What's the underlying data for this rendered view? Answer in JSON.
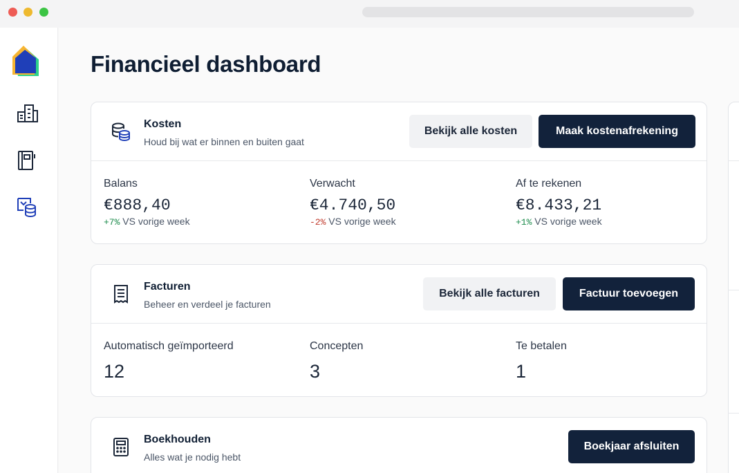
{
  "page": {
    "title": "Financieel dashboard"
  },
  "sidebar": {
    "items": [
      {
        "icon": "buildings-icon"
      },
      {
        "icon": "notebook-icon"
      },
      {
        "icon": "finance-icon"
      }
    ]
  },
  "kosten": {
    "title": "Kosten",
    "subtitle": "Houd bij wat er binnen en buiten gaat",
    "btn_secondary": "Bekijk alle kosten",
    "btn_primary": "Maak kostenafrekening",
    "stats": [
      {
        "label": "Balans",
        "value": "€888,40",
        "change": "+7%",
        "change_suffix": " VS vorige week",
        "trend": "pos"
      },
      {
        "label": "Verwacht",
        "value": "€4.740,50",
        "change": "-2%",
        "change_suffix": " VS vorige week",
        "trend": "neg"
      },
      {
        "label": "Af te rekenen",
        "value": "€8.433,21",
        "change": "+1%",
        "change_suffix": " VS vorige week",
        "trend": "pos"
      }
    ]
  },
  "facturen": {
    "title": "Facturen",
    "subtitle": "Beheer en verdeel je facturen",
    "btn_secondary": "Bekijk alle facturen",
    "btn_primary": "Factuur toevoegen",
    "stats": [
      {
        "label": "Automatisch geïmporteerd",
        "value": "12"
      },
      {
        "label": "Concepten",
        "value": "3"
      },
      {
        "label": "Te betalen",
        "value": "1"
      }
    ]
  },
  "boekhouden": {
    "title": "Boekhouden",
    "subtitle": "Alles wat je nodig hebt",
    "btn_primary": "Boekjaar afsluiten"
  },
  "colors": {
    "primary": "#12223b",
    "positive": "#1a8a4a",
    "negative": "#c0392b",
    "icon_blue": "#1f3fb8"
  }
}
